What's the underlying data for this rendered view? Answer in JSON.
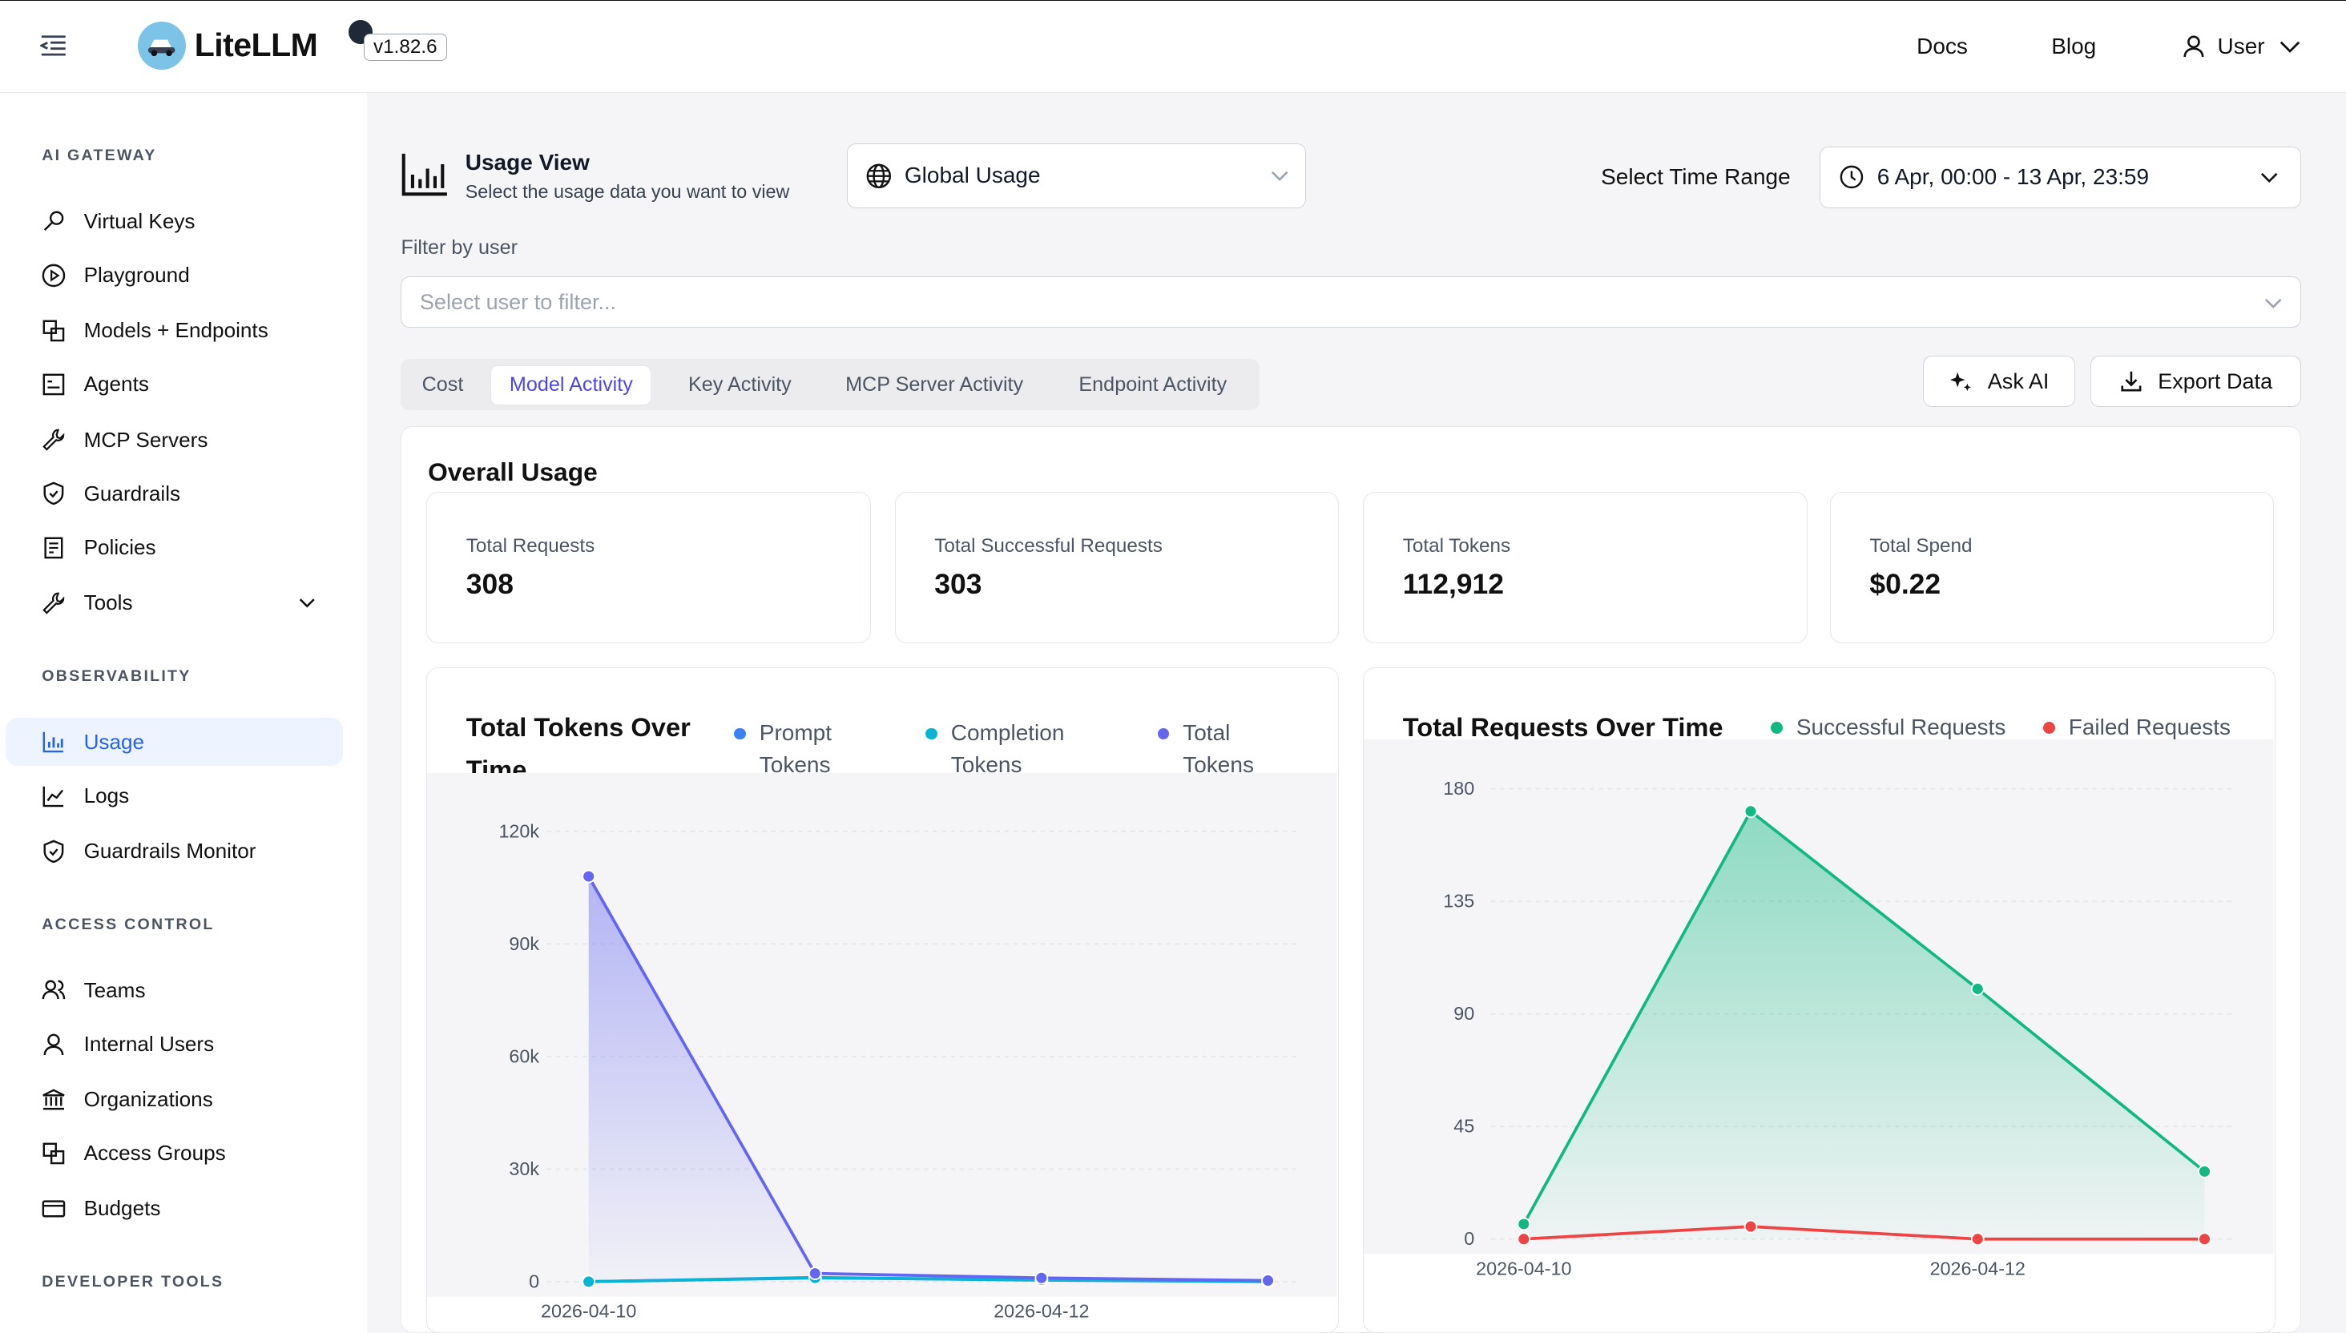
{
  "app": {
    "brand": "LiteLLM",
    "version": "v1.82.6"
  },
  "topnav": {
    "docs": "Docs",
    "blog": "Blog",
    "user": "User"
  },
  "sidebar": {
    "sections": {
      "ai_gateway": "AI GATEWAY",
      "observability": "OBSERVABILITY",
      "access_control": "ACCESS CONTROL",
      "developer_tools": "DEVELOPER TOOLS"
    },
    "items": {
      "virtual_keys": "Virtual Keys",
      "playground": "Playground",
      "models": "Models + Endpoints",
      "agents": "Agents",
      "mcp": "MCP Servers",
      "guardrails": "Guardrails",
      "policies": "Policies",
      "tools": "Tools",
      "usage": "Usage",
      "logs": "Logs",
      "guardrails_monitor": "Guardrails Monitor",
      "teams": "Teams",
      "internal_users": "Internal Users",
      "organizations": "Organizations",
      "access_groups": "Access Groups",
      "budgets": "Budgets"
    }
  },
  "usage_view": {
    "title": "Usage View",
    "subtitle": "Select the usage data you want to view",
    "selected": "Global Usage"
  },
  "time_range": {
    "label": "Select Time Range",
    "value": "6 Apr, 00:00 - 13 Apr, 23:59"
  },
  "filter": {
    "label": "Filter by user",
    "placeholder": "Select user to filter..."
  },
  "tabs": [
    "Cost",
    "Model Activity",
    "Key Activity",
    "MCP Server Activity",
    "Endpoint Activity"
  ],
  "actions": {
    "ask_ai": "Ask AI",
    "export": "Export Data"
  },
  "overall": {
    "title": "Overall Usage",
    "cards": [
      {
        "label": "Total Requests",
        "value": "308"
      },
      {
        "label": "Total Successful Requests",
        "value": "303"
      },
      {
        "label": "Total Tokens",
        "value": "112,912"
      },
      {
        "label": "Total Spend",
        "value": "$0.22"
      }
    ]
  },
  "colors": {
    "accent": "#4f46e5",
    "prompt": "#3b82f6",
    "completion": "#06b6d4",
    "total": "#6366f1",
    "success": "#10b981",
    "failed": "#ef4444"
  },
  "chart_data": [
    {
      "type": "area",
      "title": "Total Tokens Over Time",
      "legend": [
        "Prompt Tokens",
        "Completion Tokens",
        "Total Tokens"
      ],
      "x": [
        "2026-04-10",
        "2026-04-11",
        "2026-04-12",
        "2026-04-13"
      ],
      "xticks": [
        "2026-04-10",
        "2026-04-12"
      ],
      "yticks": [
        "0",
        "30k",
        "60k",
        "90k",
        "120k"
      ],
      "ylim": [
        0,
        120000
      ],
      "series": [
        {
          "name": "Prompt Tokens",
          "values": [
            0,
            1100,
            400,
            0
          ]
        },
        {
          "name": "Completion Tokens",
          "values": [
            0,
            1000,
            500,
            0
          ]
        },
        {
          "name": "Total Tokens",
          "values": [
            108000,
            2200,
            1000,
            300
          ]
        }
      ]
    },
    {
      "type": "area",
      "title": "Total Requests Over Time",
      "legend": [
        "Successful Requests",
        "Failed Requests"
      ],
      "x": [
        "2026-04-10",
        "2026-04-11",
        "2026-04-12",
        "2026-04-13"
      ],
      "xticks": [
        "2026-04-10",
        "2026-04-12"
      ],
      "yticks": [
        "0",
        "45",
        "90",
        "135",
        "180"
      ],
      "ylim": [
        0,
        180
      ],
      "series": [
        {
          "name": "Successful Requests",
          "values": [
            6,
            171,
            100,
            27
          ]
        },
        {
          "name": "Failed Requests",
          "values": [
            0,
            5,
            0,
            0
          ]
        }
      ]
    }
  ]
}
